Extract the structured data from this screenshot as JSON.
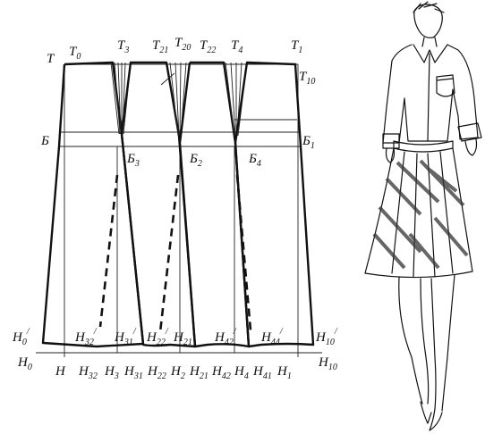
{
  "labels": {
    "T": "T",
    "T0": "T0",
    "T3": "T3",
    "T21": "T21",
    "T20": "T20",
    "T22": "T22",
    "T4": "T4",
    "T1": "T1",
    "T10": "T10",
    "B": "Б",
    "B1": "Б1",
    "B3": "Б3",
    "B2": "Б2",
    "B4": "Б4",
    "H0p": "H0/",
    "H32p": "H32/",
    "H31p": "H31/",
    "H22p": "H22/",
    "H21p": "H21",
    "H42p": "H42/",
    "H44p": "H44/",
    "H10p": "H10/",
    "H0": "H0",
    "H": "H",
    "H32": "H32",
    "H3": "H3",
    "H31": "H31",
    "H22": "H22",
    "H2": "H2",
    "H21": "H21",
    "H42": "H42",
    "H4": "H4",
    "H41": "H41",
    "H1": "H1",
    "H10": "H10"
  }
}
